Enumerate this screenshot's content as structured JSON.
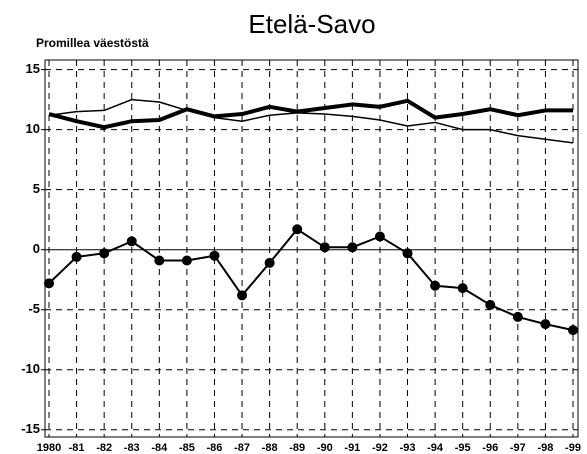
{
  "chart_data": {
    "type": "line",
    "title": "Etelä-Savo",
    "y_label": "Promillea väestöstä",
    "categories": [
      "1980",
      "-81",
      "-82",
      "-83",
      "-84",
      "-85",
      "-86",
      "-87",
      "-88",
      "-89",
      "-90",
      "-91",
      "-92",
      "-93",
      "-94",
      "-95",
      "-96",
      "-97",
      "-98",
      "-99"
    ],
    "series": [
      {
        "color": "#000000",
        "width": 4,
        "markers": false,
        "values": [
          11.3,
          10.7,
          10.2,
          10.7,
          10.8,
          11.7,
          11.1,
          11.3,
          11.9,
          11.5,
          11.8,
          12.1,
          11.9,
          12.4,
          11.0,
          11.3,
          11.7,
          11.2,
          11.6,
          11.6
        ]
      },
      {
        "color": "#000000",
        "width": 1.5,
        "markers": false,
        "values": [
          11.2,
          11.5,
          11.6,
          12.5,
          12.3,
          11.6,
          11.0,
          10.7,
          11.2,
          11.4,
          11.3,
          11.1,
          10.8,
          10.3,
          10.6,
          10.0,
          10.0,
          9.5,
          9.2,
          8.9
        ]
      },
      {
        "color": "#000000",
        "width": 2,
        "markers": true,
        "values": [
          -2.8,
          -0.6,
          -0.3,
          0.7,
          -0.9,
          -0.9,
          -0.5,
          -3.8,
          -1.1,
          1.7,
          0.2,
          0.2,
          1.1,
          -0.3,
          -3.0,
          -3.2,
          -4.6,
          -5.6,
          -6.2,
          -6.7
        ]
      }
    ],
    "ylim": [
      -15.6,
      15.8
    ],
    "yticks": [
      15,
      10,
      5,
      0,
      -5,
      -10,
      -15
    ],
    "grid": true
  }
}
